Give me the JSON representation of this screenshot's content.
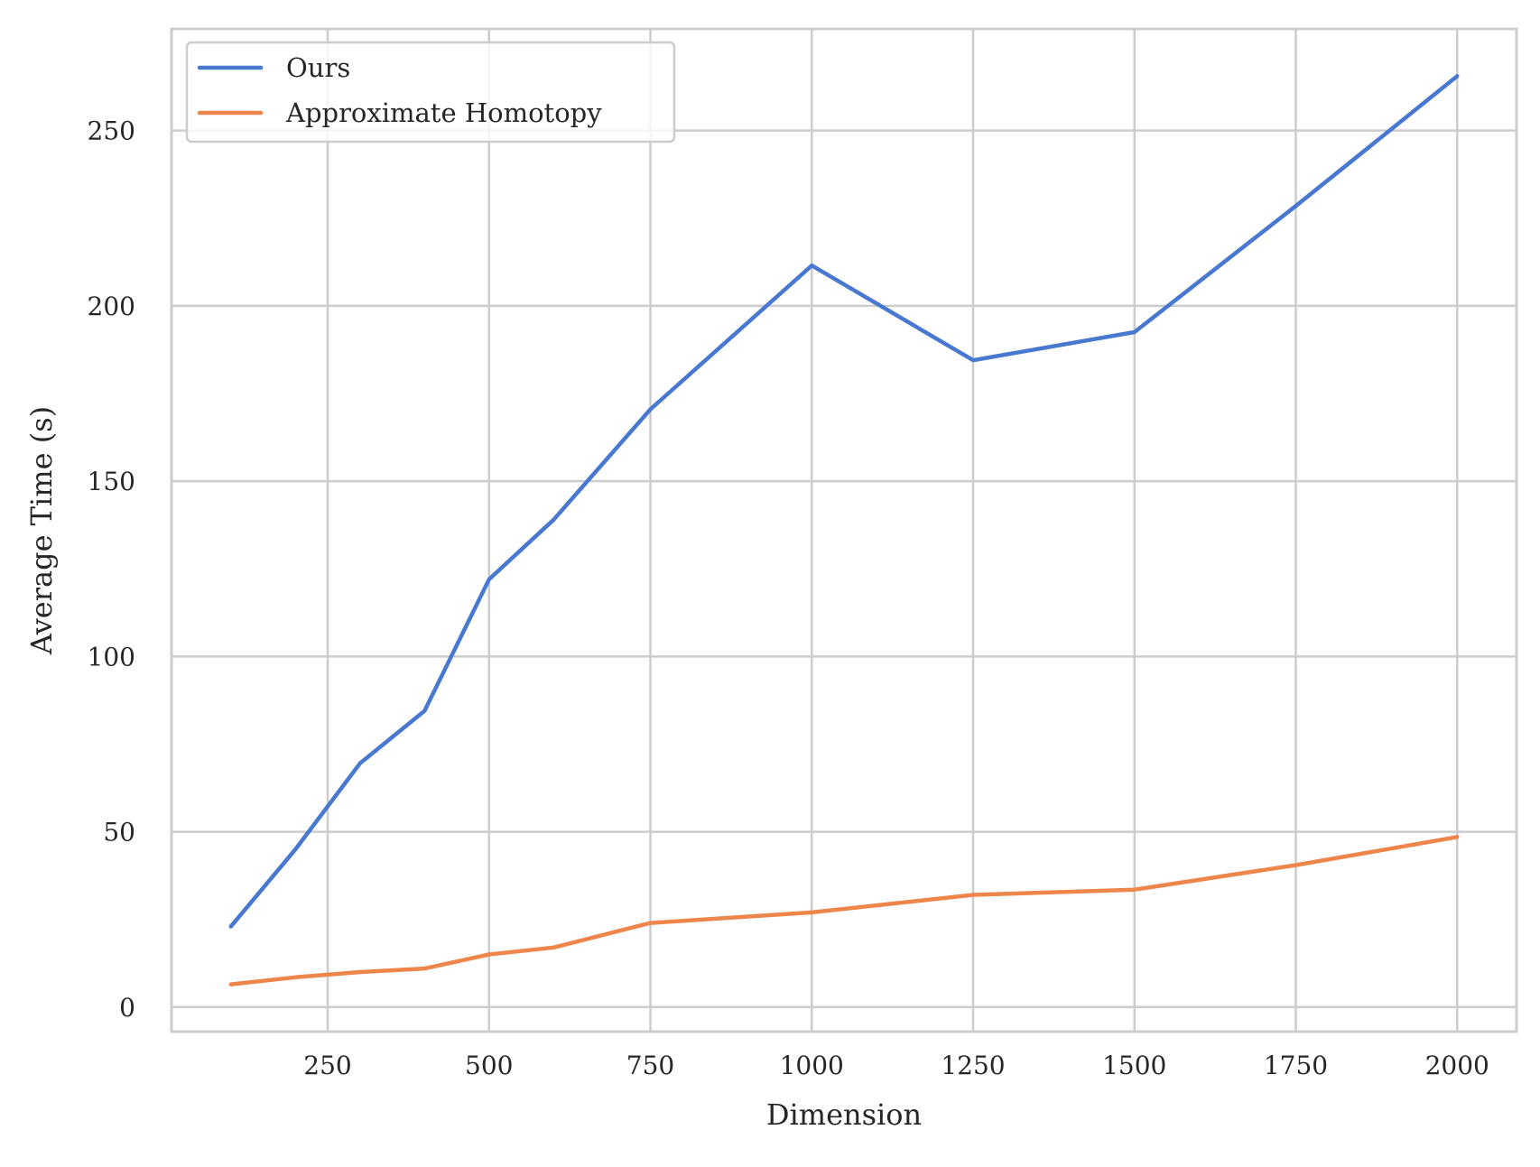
{
  "chart_data": {
    "type": "line",
    "title": "",
    "xlabel": "Dimension",
    "ylabel": "Average Time (s)",
    "xlim": [
      8,
      2092
    ],
    "ylim": [
      -7,
      279
    ],
    "x_ticks": [
      250,
      500,
      750,
      1000,
      1250,
      1500,
      1750,
      2000
    ],
    "x_tick_labels": [
      "250",
      "500",
      "750",
      "1000",
      "1250",
      "1500",
      "1750",
      "2000"
    ],
    "y_ticks": [
      0,
      50,
      100,
      150,
      200,
      250
    ],
    "y_tick_labels": [
      "0",
      "50",
      "100",
      "150",
      "200",
      "250"
    ],
    "grid": true,
    "legend_position": "upper-left",
    "x": [
      100,
      200,
      300,
      400,
      500,
      600,
      750,
      1000,
      1250,
      1500,
      1750,
      2000
    ],
    "series": [
      {
        "name": "Ours",
        "color": "#4878d0",
        "values": [
          23,
          45,
          69.5,
          84.5,
          122,
          139,
          170.5,
          211.5,
          184.5,
          192.5,
          228.5,
          265.5
        ]
      },
      {
        "name": "Approximate Homotopy",
        "color": "#ee854a",
        "values": [
          6.5,
          8.5,
          10,
          11,
          15,
          17,
          24,
          27,
          32,
          33.5,
          40.5,
          48.5
        ]
      }
    ],
    "grid_color": "#cccccc",
    "spine_color": "#cccccc",
    "text_color": "#262626"
  }
}
